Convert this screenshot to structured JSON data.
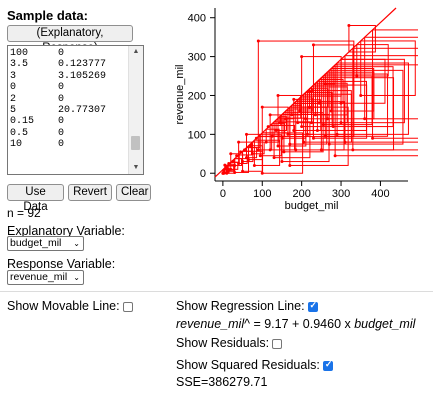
{
  "title": "Sample data:",
  "format_button": "(Explanatory, Response)",
  "data_rows": [
    [
      "100",
      "0"
    ],
    [
      "3.5",
      "0.123777"
    ],
    [
      "3",
      "3.105269"
    ],
    [
      "0",
      "0"
    ],
    [
      "2",
      "0"
    ],
    [
      "5",
      "20.77307"
    ],
    [
      "0.15",
      "0"
    ],
    [
      "0.5",
      "0"
    ],
    [
      "10",
      "0"
    ]
  ],
  "buttons": {
    "use": "Use Data",
    "revert": "Revert",
    "clear": "Clear"
  },
  "n_text": "n = 92",
  "explanatory": {
    "label": "Explanatory Variable:",
    "value": "budget_mil"
  },
  "response": {
    "label": "Response Variable:",
    "value": "revenue_mil"
  },
  "options": {
    "movable": {
      "label": "Show Movable Line:",
      "checked": false
    },
    "regression": {
      "label": "Show Regression Line:",
      "checked": true
    },
    "residuals": {
      "label": "Show Residuals:",
      "checked": false
    },
    "squared": {
      "label": "Show Squared Residuals:",
      "checked": true
    }
  },
  "equation": {
    "response_var": "revenue_mil",
    "hat": "^",
    "middle": " = 9.17 + 0.9460 x ",
    "explanatory_var": "budget_mil"
  },
  "sse": "SSE=386279.71",
  "chart_data": {
    "type": "scatter",
    "xlabel": "budget_mil",
    "ylabel": "revenue_mil",
    "xlim": [
      -20,
      470
    ],
    "ylim": [
      -20,
      425
    ],
    "xticks": [
      0,
      100,
      200,
      300,
      400
    ],
    "yticks": [
      0,
      100,
      200,
      300,
      400
    ],
    "regression": {
      "intercept": 9.17,
      "slope": 0.946
    },
    "points": [
      [
        100,
        0
      ],
      [
        3.5,
        0.12
      ],
      [
        3,
        3.1
      ],
      [
        0,
        0
      ],
      [
        2,
        0
      ],
      [
        5,
        20.8
      ],
      [
        0.15,
        0
      ],
      [
        0.5,
        0
      ],
      [
        10,
        0
      ],
      [
        5,
        10
      ],
      [
        8,
        15
      ],
      [
        12,
        5
      ],
      [
        15,
        25
      ],
      [
        20,
        10
      ],
      [
        25,
        30
      ],
      [
        30,
        20
      ],
      [
        35,
        45
      ],
      [
        40,
        25
      ],
      [
        45,
        55
      ],
      [
        50,
        30
      ],
      [
        55,
        60
      ],
      [
        60,
        40
      ],
      [
        65,
        35
      ],
      [
        70,
        70
      ],
      [
        75,
        50
      ],
      [
        80,
        20
      ],
      [
        85,
        90
      ],
      [
        90,
        60
      ],
      [
        95,
        45
      ],
      [
        110,
        80
      ],
      [
        115,
        120
      ],
      [
        120,
        60
      ],
      [
        125,
        95
      ],
      [
        130,
        40
      ],
      [
        135,
        110
      ],
      [
        140,
        70
      ],
      [
        145,
        130
      ],
      [
        150,
        90
      ],
      [
        155,
        55
      ],
      [
        160,
        140
      ],
      [
        165,
        100
      ],
      [
        170,
        75
      ],
      [
        175,
        150
      ],
      [
        180,
        110
      ],
      [
        185,
        60
      ],
      [
        190,
        130
      ],
      [
        195,
        160
      ],
      [
        200,
        120
      ],
      [
        205,
        80
      ],
      [
        210,
        140
      ],
      [
        215,
        100
      ],
      [
        220,
        170
      ],
      [
        225,
        130
      ],
      [
        230,
        90
      ],
      [
        235,
        150
      ],
      [
        240,
        110
      ],
      [
        245,
        180
      ],
      [
        250,
        60
      ],
      [
        255,
        125
      ],
      [
        260,
        95
      ],
      [
        265,
        140
      ],
      [
        270,
        75
      ],
      [
        275,
        160
      ],
      [
        280,
        120
      ],
      [
        285,
        45
      ],
      [
        290,
        100
      ],
      [
        300,
        130
      ],
      [
        310,
        80
      ],
      [
        320,
        380
      ],
      [
        330,
        60
      ],
      [
        340,
        250
      ],
      [
        350,
        200
      ],
      [
        360,
        140
      ],
      [
        380,
        90
      ],
      [
        200,
        300
      ],
      [
        230,
        330
      ],
      [
        90,
        340
      ],
      [
        150,
        30
      ],
      [
        170,
        20
      ],
      [
        60,
        100
      ],
      [
        120,
        150
      ],
      [
        40,
        80
      ],
      [
        180,
        190
      ],
      [
        220,
        210
      ],
      [
        260,
        230
      ],
      [
        300,
        180
      ],
      [
        100,
        170
      ],
      [
        140,
        200
      ],
      [
        50,
        5
      ],
      [
        30,
        2
      ],
      [
        20,
        50
      ],
      [
        15,
        8
      ]
    ]
  },
  "colors": {
    "accent": "#1a73e8",
    "residual_square": "#ff0000",
    "regression_line": "#ff0000"
  }
}
